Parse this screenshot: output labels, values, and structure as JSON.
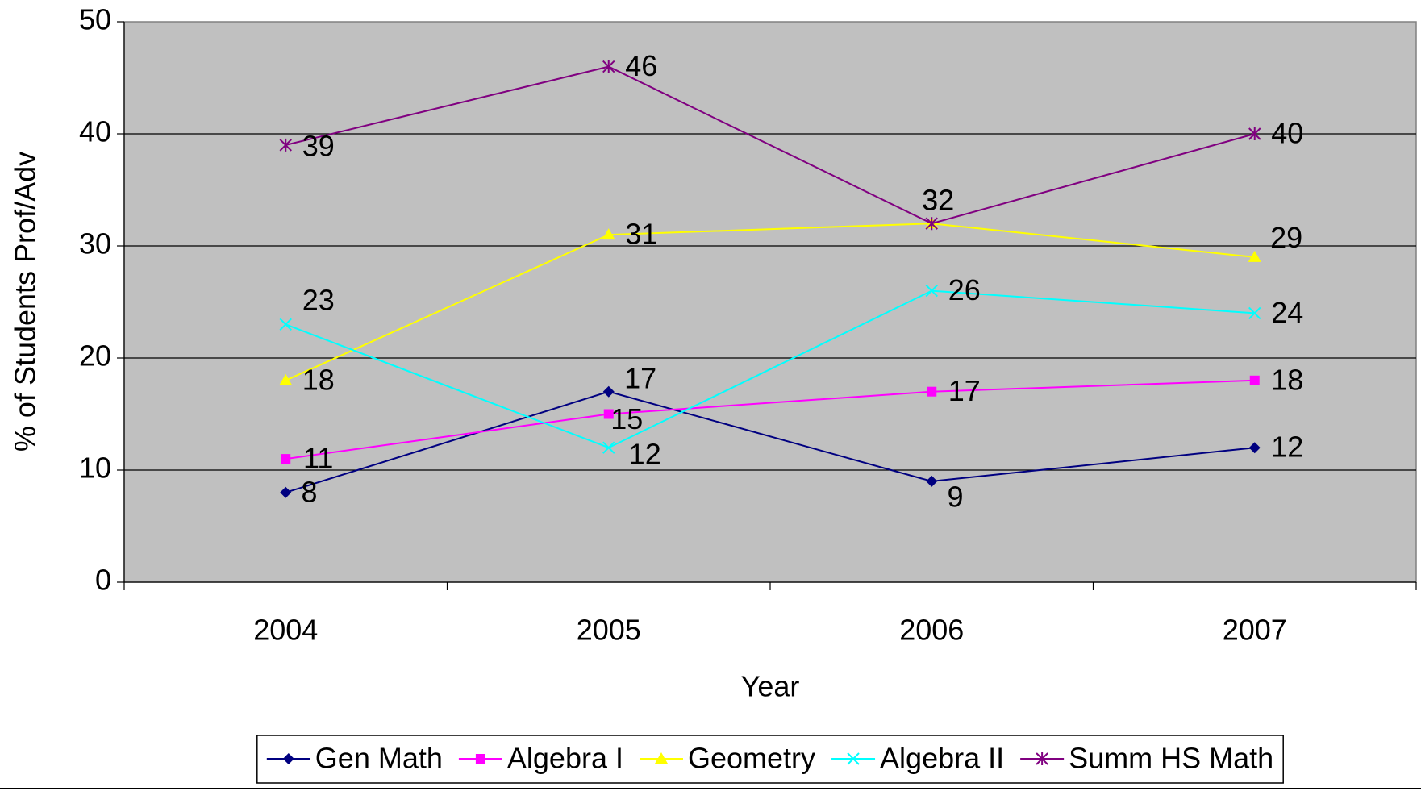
{
  "chart_data": {
    "type": "line",
    "xlabel": "Year",
    "ylabel": "% of Students Prof/Adv",
    "categories": [
      "2004",
      "2005",
      "2006",
      "2007"
    ],
    "series": [
      {
        "name": "Gen Math",
        "color": "#000080",
        "marker": "diamond",
        "values": [
          8,
          17,
          9,
          12
        ]
      },
      {
        "name": "Algebra I",
        "color": "#ff00ff",
        "marker": "square",
        "values": [
          11,
          15,
          17,
          18
        ]
      },
      {
        "name": "Geometry",
        "color": "#ffff00",
        "marker": "triangle",
        "values": [
          18,
          31,
          32,
          29
        ]
      },
      {
        "name": "Algebra II",
        "color": "#00ffff",
        "marker": "x",
        "values": [
          23,
          12,
          26,
          24
        ]
      },
      {
        "name": "Summ HS Math",
        "color": "#800080",
        "marker": "star",
        "values": [
          39,
          46,
          32,
          40
        ]
      }
    ],
    "ylim": [
      0,
      50
    ],
    "yticks": [
      0,
      10,
      20,
      30,
      40,
      50
    ],
    "grid": true,
    "legend": "bottom"
  }
}
